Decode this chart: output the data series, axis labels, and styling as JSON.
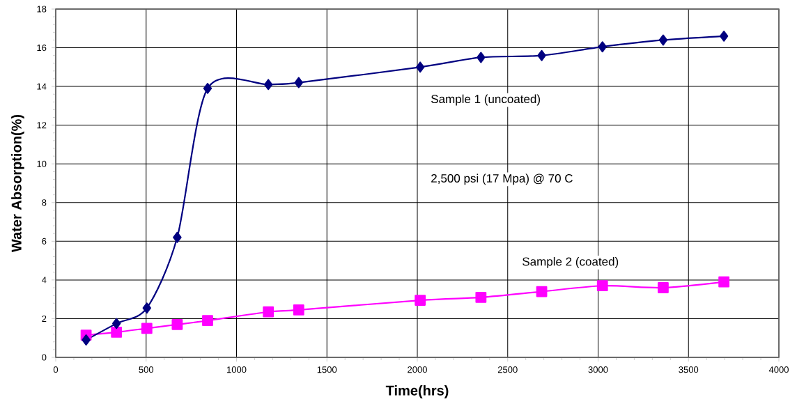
{
  "chart_data": {
    "type": "line",
    "xlabel": "Time(hrs)",
    "ylabel": "Water Absorption(%)",
    "x": [
      168,
      336,
      504,
      672,
      840,
      1176,
      1344,
      2016,
      2352,
      2688,
      3024,
      3360,
      3696
    ],
    "series": [
      {
        "name": "Sample 1 (uncoated)",
        "color": "#000080",
        "marker": "diamond",
        "values": [
          0.9,
          1.75,
          2.55,
          6.2,
          13.9,
          14.1,
          14.2,
          15.0,
          15.5,
          15.6,
          16.05,
          16.4,
          16.6
        ]
      },
      {
        "name": "Sample 2 (coated)",
        "color": "#ff00ff",
        "marker": "square",
        "values": [
          1.15,
          1.3,
          1.5,
          1.7,
          1.9,
          2.35,
          2.45,
          2.95,
          3.1,
          3.4,
          3.7,
          3.6,
          3.9
        ]
      }
    ],
    "annotations": [
      "2,500 psi (17 Mpa) @ 70 C"
    ],
    "xlim": [
      0,
      4000
    ],
    "ylim": [
      0,
      18
    ],
    "xticks": [
      0,
      500,
      1000,
      1500,
      2000,
      2500,
      3000,
      3500,
      4000
    ],
    "yticks": [
      0,
      2,
      4,
      6,
      8,
      10,
      12,
      14,
      16,
      18
    ],
    "grid": true,
    "line_style": "solid"
  }
}
